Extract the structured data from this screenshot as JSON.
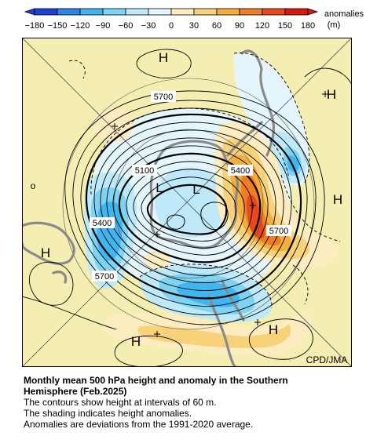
{
  "colorbar": {
    "unit_label": "anomalies",
    "unit": "(m)",
    "ticks": [
      "−180",
      "−150",
      "−120",
      "−90",
      "−60",
      "−30",
      "0",
      "30",
      "60",
      "90",
      "120",
      "150",
      "180"
    ],
    "colors": [
      "#1f3fd6",
      "#2a84ea",
      "#3fb6ef",
      "#7ed3f2",
      "#bde9f8",
      "#e4f6fb",
      "#fcecc0",
      "#f8d27a",
      "#f4ae3a",
      "#ef7d26",
      "#e8481c",
      "#d41a10"
    ]
  },
  "map": {
    "background_color": "#f5eeb2",
    "contour_labels": [
      "5700",
      "5100",
      "5400",
      "5400",
      "5700",
      "5700"
    ],
    "high_markers": [
      "H",
      "H",
      "H",
      "H",
      "H",
      "H"
    ],
    "low_markers": [
      "L",
      "L"
    ],
    "other_label": "o",
    "credit": "CPD/JMA"
  },
  "caption": {
    "title_line1": "Monthly mean 500 hPa height and anomaly in the Southern",
    "title_line2": "Hemisphere (Feb.2025)",
    "line1": "The contours show height at intervals of 60 m.",
    "line2": "The shading indicates height anomalies.",
    "line3": "Anomalies are deviations from the 1991-2020 average."
  }
}
